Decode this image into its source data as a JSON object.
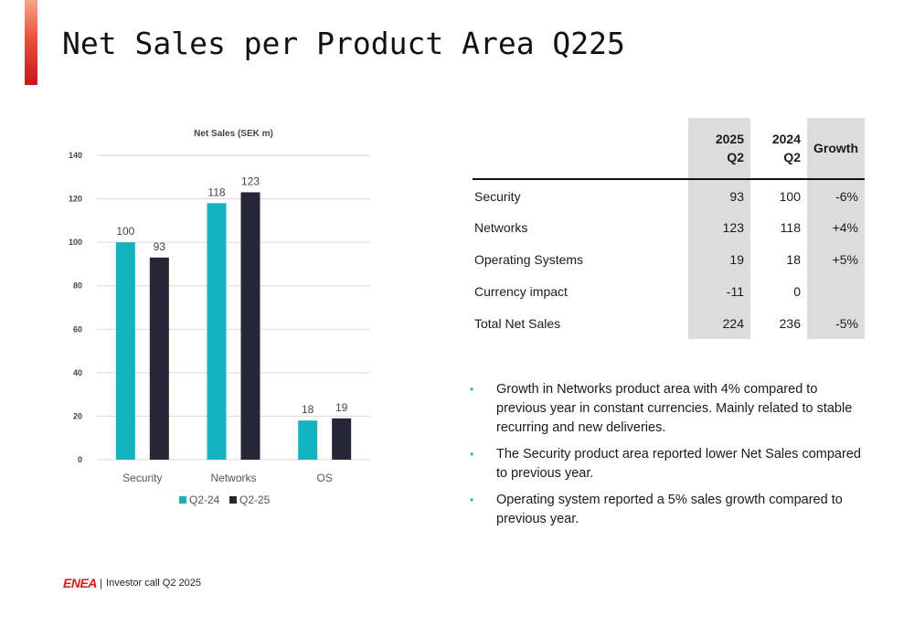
{
  "slide": {
    "title": "Net Sales per Product Area Q225",
    "accent_color": "#c8161d"
  },
  "chart_data": {
    "type": "bar",
    "title": "Net Sales (SEK m)",
    "categories": [
      "Security",
      "Networks",
      "OS"
    ],
    "series": [
      {
        "name": "Q2-24",
        "values": [
          100,
          118,
          18
        ],
        "color": "#14b3bf"
      },
      {
        "name": "Q2-25",
        "values": [
          93,
          123,
          19
        ],
        "color": "#262637"
      }
    ],
    "ylim": [
      0,
      140
    ],
    "yticks": [
      0,
      20,
      40,
      60,
      80,
      100,
      120,
      140
    ],
    "grid": true,
    "legend": "bottom",
    "data_labels": true
  },
  "table": {
    "headers": [
      "",
      "2025\nQ2",
      "2024\nQ2",
      "Growth"
    ],
    "rows": [
      {
        "label": "Security",
        "q2_2025": "93",
        "q2_2024": "100",
        "growth": "-6%"
      },
      {
        "label": "Networks",
        "q2_2025": "123",
        "q2_2024": "118",
        "growth": "+4%"
      },
      {
        "label": "Operating Systems",
        "q2_2025": "19",
        "q2_2024": "18",
        "growth": "+5%"
      },
      {
        "label": "Currency impact",
        "q2_2025": "-11",
        "q2_2024": "0",
        "growth": ""
      },
      {
        "label": "Total Net Sales",
        "q2_2025": "224",
        "q2_2024": "236",
        "growth": "-5%"
      }
    ]
  },
  "bullets": [
    "Growth in Networks product area with 4% compared to previous year in constant currencies. Mainly related to stable recurring and new deliveries.",
    "The Security product area reported lower Net Sales compared to previous year.",
    "Operating system reported a 5% sales growth compared to previous year."
  ],
  "bullet_color": "#17b0c0",
  "footer": {
    "logo_text": "ENEA",
    "separator": "|",
    "text": "Investor call Q2 2025"
  }
}
